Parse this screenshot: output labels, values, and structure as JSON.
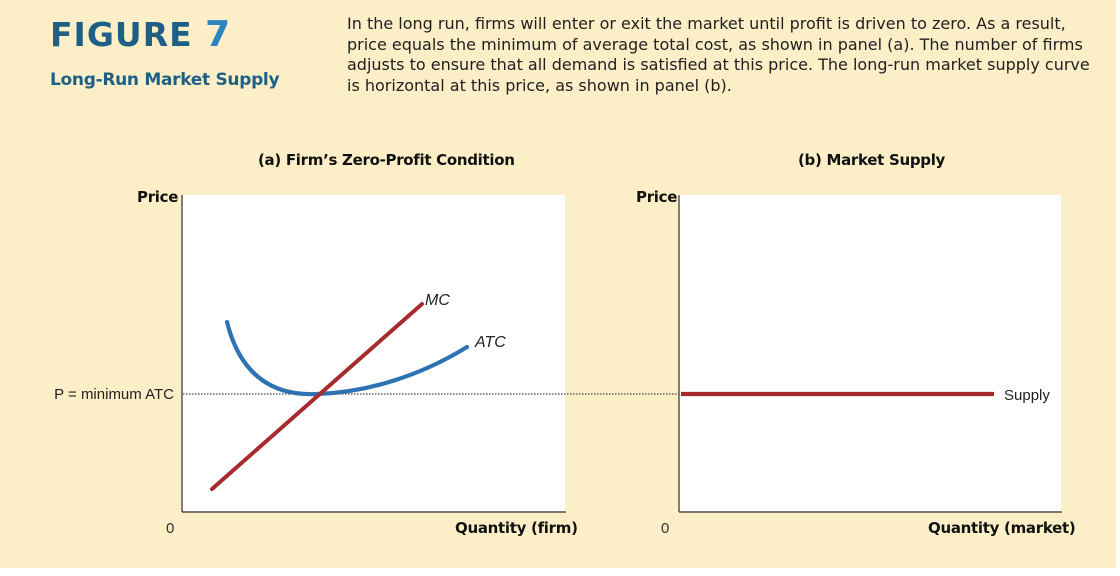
{
  "figure": {
    "label_word": "FIGURE",
    "label_number": "7",
    "title": "Long-Run Market Supply",
    "caption": "In the long run, firms will enter or exit the market until profit is driven to zero. As a result, price equals the minimum of average total cost, as shown in panel (a). The number of firms adjusts to ensure that all demand is satisfied at this price. The long-run market supply curve is horizontal at this price, as shown in panel (b)."
  },
  "panels": {
    "a": {
      "title": "(a) Firm’s Zero-Profit Condition",
      "ylabel": "Price",
      "xlabel": "Quantity (firm)",
      "origin": "0",
      "price_label": "P = minimum ATC",
      "mc_label": "MC",
      "atc_label": "ATC"
    },
    "b": {
      "title": "(b) Market Supply",
      "ylabel": "Price",
      "xlabel": "Quantity (market)",
      "origin": "0",
      "supply_label": "Supply"
    }
  },
  "colors": {
    "mc": "#a62a2e",
    "atc": "#2f72b4",
    "supply": "#a62a2e",
    "title": "#1e5f86",
    "background": "#fcefc7"
  }
}
